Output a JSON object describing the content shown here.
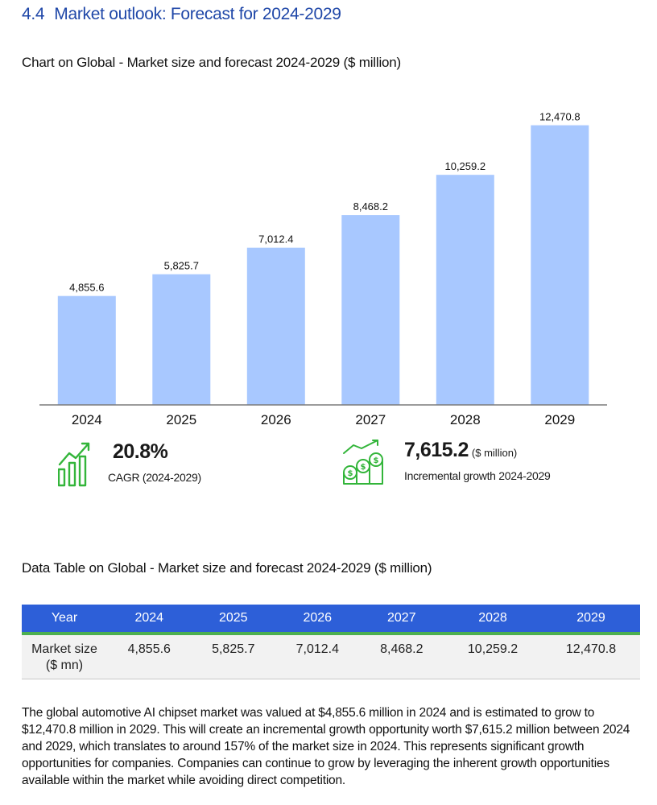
{
  "section": {
    "number": "4.4",
    "title": "Market outlook: Forecast for 2024-2029"
  },
  "chart_title": "Chart on Global - Market size and forecast 2024-2029 ($ million)",
  "chart_data": {
    "type": "bar",
    "categories": [
      "2024",
      "2025",
      "2026",
      "2027",
      "2028",
      "2029"
    ],
    "values": [
      4855.6,
      5825.7,
      7012.4,
      8468.2,
      10259.2,
      12470.8
    ],
    "data_labels": [
      "4,855.6",
      "5,825.7",
      "7,012.4",
      "8,468.2",
      "10,259.2",
      "12,470.8"
    ],
    "title": "",
    "xlabel": "",
    "ylabel": "",
    "ylim": [
      0,
      14000
    ],
    "grid": false,
    "bar_color": "#a8c8ff"
  },
  "stats": {
    "cagr": {
      "value": "20.8%",
      "label": "CAGR (2024-2029)",
      "icon": "growth-chart-icon"
    },
    "incremental": {
      "value": "7,615.2",
      "unit": "($ million)",
      "label": "Incremental growth 2024-2029",
      "icon": "money-growth-icon"
    },
    "icon_color": "#33b53a"
  },
  "table": {
    "title": "Data Table on Global - Market size and forecast 2024-2029 ($ million)",
    "header": [
      "Year",
      "2024",
      "2025",
      "2026",
      "2027",
      "2028",
      "2029"
    ],
    "row_label_line1": "Market size",
    "row_label_line2": "($ mn)",
    "row_values": [
      "4,855.6",
      "5,825.7",
      "7,012.4",
      "8,468.2",
      "10,259.2",
      "12,470.8"
    ],
    "header_color": "#2d5fd8",
    "accent_color": "#4caf50"
  },
  "paragraph": "The global automotive AI chipset market was valued at $4,855.6 million in 2024 and is estimated to grow to $12,470.8 million in 2029. This will create an incremental growth opportunity worth $7,615.2 million between 2024 and 2029, which translates to around 157% of the market size in 2024. This represents significant growth opportunities for companies. Companies can continue to grow by leveraging the inherent growth opportunities available within the market while avoiding direct competition."
}
